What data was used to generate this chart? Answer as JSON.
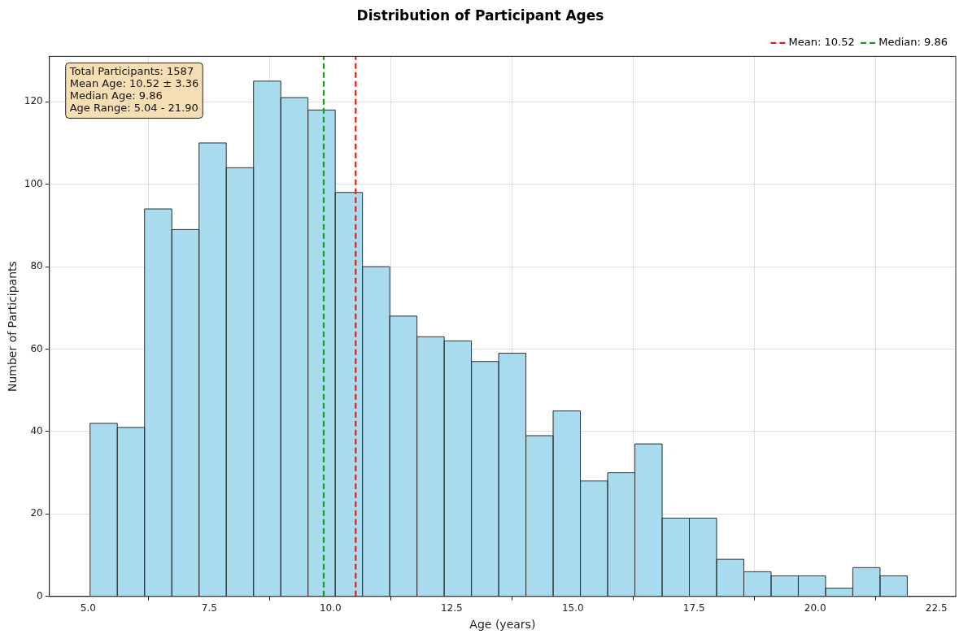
{
  "chart_data": {
    "type": "histogram",
    "title": "Distribution of Participant Ages",
    "xlabel": "Age (years)",
    "ylabel": "Number of Participants",
    "bins": [
      5.04,
      5.602,
      6.164,
      6.726,
      7.288,
      7.85,
      8.412,
      8.974,
      9.536,
      10.098,
      10.66,
      11.222,
      11.784,
      12.346,
      12.908,
      13.47,
      14.032,
      14.594,
      15.156,
      15.718,
      16.28,
      16.842,
      17.404,
      17.966,
      18.528,
      19.09,
      19.652,
      20.214,
      20.776,
      21.338,
      21.9
    ],
    "values": [
      42,
      41,
      94,
      89,
      110,
      104,
      125,
      121,
      118,
      98,
      80,
      68,
      63,
      62,
      57,
      59,
      39,
      45,
      28,
      30,
      37,
      19,
      19,
      9,
      6,
      5,
      5,
      2,
      7,
      5
    ],
    "color": "#a8dbee",
    "xlim": [
      4.2,
      22.9
    ],
    "xticks": [
      {
        "value": 5,
        "label": "5.0"
      },
      {
        "value": 7.5,
        "label": "7.5"
      },
      {
        "value": 10,
        "label": "10.0"
      },
      {
        "value": 12.5,
        "label": "12.5"
      },
      {
        "value": 15,
        "label": "15.0"
      },
      {
        "value": 17.5,
        "label": "17.5"
      },
      {
        "value": 20,
        "label": "20.0"
      },
      {
        "value": 22.5,
        "label": "22.5"
      }
    ],
    "ylim": [
      0,
      131
    ],
    "yticks": [
      0,
      20,
      40,
      60,
      80,
      100,
      120
    ],
    "grid": true,
    "legend": "top right",
    "ref_lines": [
      {
        "axis": "x",
        "value": 10.52,
        "label": "Mean: 10.52",
        "color": "#e41a1c",
        "line_style": "dashed"
      },
      {
        "axis": "x",
        "value": 9.86,
        "label": "Median: 9.86",
        "color": "#1a9a1a",
        "line_style": "dashed"
      }
    ],
    "annotations": [
      "Total Participants: 1587",
      "Mean Age: 10.52 ± 3.36",
      "Median Age: 9.86",
      "Age Range: 5.04 - 21.90"
    ]
  }
}
